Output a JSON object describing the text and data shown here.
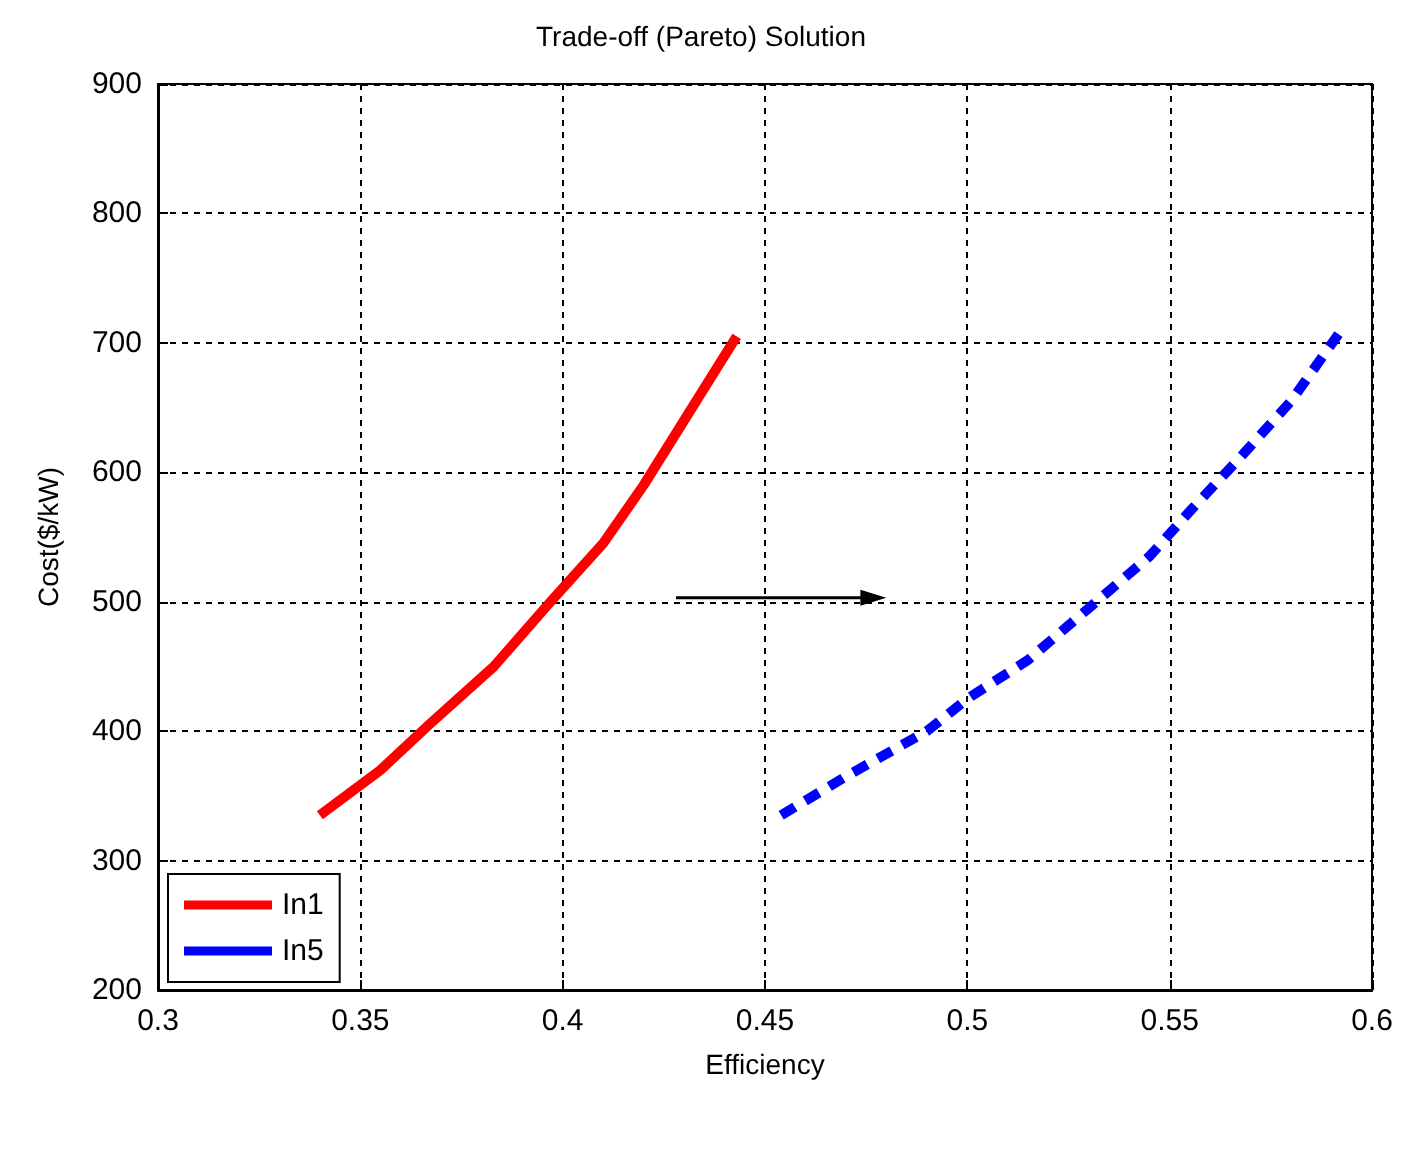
{
  "chart_data": {
    "type": "line",
    "title": "Trade-off (Pareto) Solution",
    "xlabel": "Efficiency",
    "ylabel": "Cost($/kW)",
    "series": [
      {
        "name": "In1",
        "color": "#ff0000",
        "line_style": "solid",
        "x": [
          0.34,
          0.355,
          0.367,
          0.383,
          0.397,
          0.41,
          0.42,
          0.43,
          0.437,
          0.443
        ],
        "values": [
          335,
          370,
          405,
          450,
          500,
          545,
          590,
          640,
          675,
          705
        ]
      },
      {
        "name": "In5",
        "color": "#0000ff",
        "line_style": "dashed",
        "x": [
          0.454,
          0.47,
          0.49,
          0.5,
          0.515,
          0.53,
          0.545,
          0.555,
          0.567,
          0.58,
          0.592
        ],
        "values": [
          335,
          365,
          400,
          425,
          455,
          495,
          535,
          570,
          610,
          655,
          708
        ]
      }
    ],
    "xlim": [
      0.3,
      0.6
    ],
    "xticks": [
      0.3,
      0.35,
      0.4,
      0.45,
      0.5,
      0.55,
      0.6
    ],
    "ylim": [
      200,
      900
    ],
    "yticks": [
      200,
      300,
      400,
      500,
      600,
      700,
      800,
      900
    ],
    "grid": true,
    "legend": "bottom left",
    "marker": "none"
  }
}
